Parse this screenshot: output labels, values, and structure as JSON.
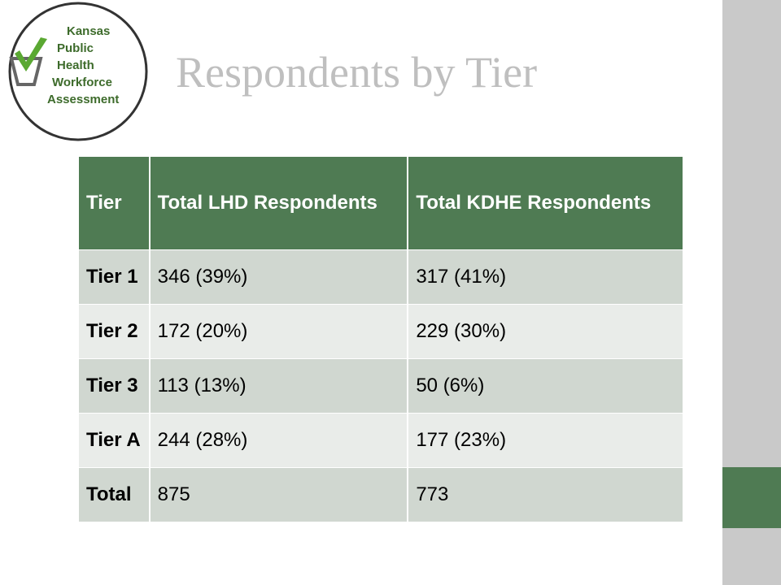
{
  "logo": {
    "lines": [
      "Kansas",
      "Public",
      "Health",
      "Workforce",
      "Assessment"
    ]
  },
  "header": {
    "title": "Respondents by Tier"
  },
  "table": {
    "columns": [
      "Tier",
      "Total LHD Respondents",
      "Total KDHE Respondents"
    ],
    "rows": [
      [
        "Tier 1",
        "346 (39%)",
        "317 (41%)"
      ],
      [
        "Tier 2",
        "172 (20%)",
        "229 (30%)"
      ],
      [
        "Tier 3",
        "113 (13%)",
        "50 (6%)"
      ],
      [
        "Tier A",
        "244 (28%)",
        "177 (23%)"
      ],
      [
        "Total",
        "875",
        "773"
      ]
    ]
  }
}
